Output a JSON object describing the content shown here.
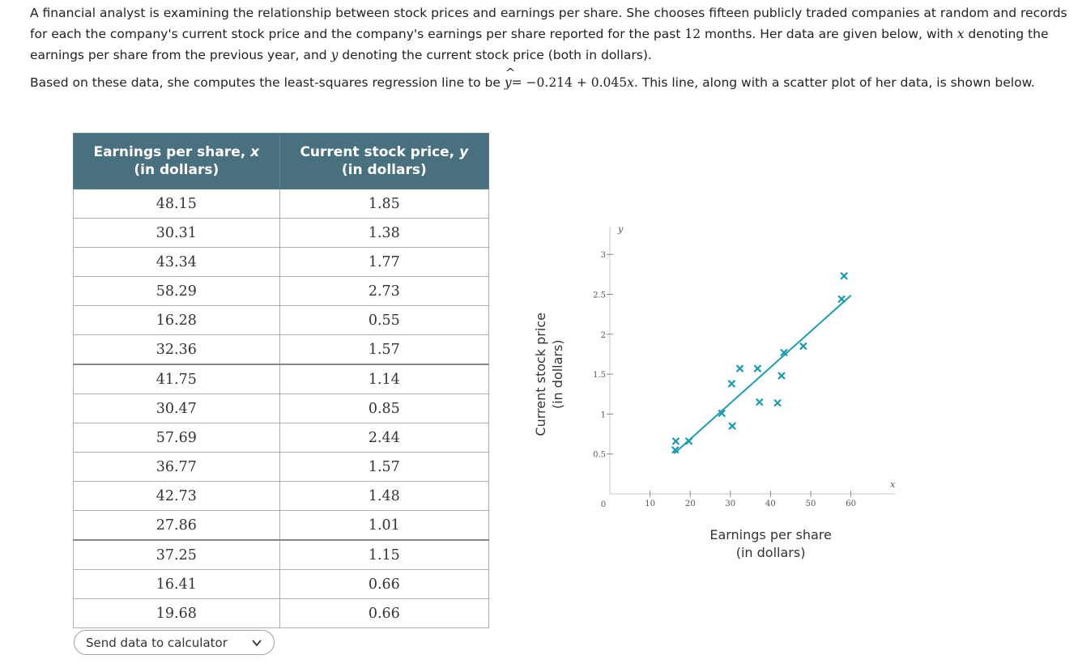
{
  "problem": {
    "p1": "A financial analyst is examining the relationship between stock prices and earnings per share. She chooses fifteen publicly traded companies at random and records for each the company's current stock price and the company's earnings per share reported for the past",
    "months_num": "12",
    "p1_b": "months. Her data are given below, with",
    "x_var": "x",
    "p1_c": "denoting the earnings per share from the previous year, and",
    "y_var": "y",
    "p1_d": "denoting the current stock price (both in dollars).",
    "p2_a": "Based on these data, she computes the least-squares regression line to be",
    "yhat": "y",
    "equation": "= −0.214 + 0.045",
    "eq_x": "x",
    "p2_b": ". This line, along with a scatter plot of her data, is shown below."
  },
  "table": {
    "col1_line1": "Earnings per share,",
    "col1_var": "x",
    "col1_line2": "(in dollars)",
    "col2_line1": "Current stock price,",
    "col2_var": "y",
    "col2_line2": "(in dollars)",
    "rows": [
      [
        "48.15",
        "1.85"
      ],
      [
        "30.31",
        "1.38"
      ],
      [
        "43.34",
        "1.77"
      ],
      [
        "58.29",
        "2.73"
      ],
      [
        "16.28",
        "0.55"
      ],
      [
        "32.36",
        "1.57"
      ],
      [
        "41.75",
        "1.14"
      ],
      [
        "30.47",
        "0.85"
      ],
      [
        "57.69",
        "2.44"
      ],
      [
        "36.77",
        "1.57"
      ],
      [
        "42.73",
        "1.48"
      ],
      [
        "27.86",
        "1.01"
      ],
      [
        "37.25",
        "1.15"
      ],
      [
        "16.41",
        "0.66"
      ],
      [
        "19.68",
        "0.66"
      ]
    ]
  },
  "send_button": {
    "label": "Send data to calculator",
    "icon": "chevron-down-icon"
  },
  "chart_data": {
    "type": "scatter",
    "x": [
      48.15,
      30.31,
      43.34,
      58.29,
      16.28,
      32.36,
      41.75,
      30.47,
      57.69,
      36.77,
      42.73,
      27.86,
      37.25,
      16.41,
      19.68
    ],
    "y": [
      1.85,
      1.38,
      1.77,
      2.73,
      0.55,
      1.57,
      1.14,
      0.85,
      2.44,
      1.57,
      1.48,
      1.01,
      1.15,
      0.66,
      0.66
    ],
    "regression": {
      "intercept": -0.214,
      "slope": 0.045,
      "x_range": [
        16,
        60
      ]
    },
    "xlim": [
      0,
      70
    ],
    "ylim": [
      0,
      3.3
    ],
    "x_ticks": [
      10,
      20,
      30,
      40,
      50,
      60
    ],
    "y_ticks": [
      0.5,
      1,
      1.5,
      2,
      2.5,
      3
    ],
    "x_tick_labels": [
      "10",
      "20",
      "30",
      "40",
      "50",
      "60"
    ],
    "y_tick_labels": [
      "0.5",
      "1",
      "1.5",
      "2",
      "2.5",
      "3"
    ],
    "origin_label": "0",
    "x_var": "x",
    "y_var": "y",
    "xlabel_line1": "Earnings per share",
    "xlabel_line2": "(in dollars)",
    "ylabel_line1": "Current stock price",
    "ylabel_line2": "(in dollars)",
    "marker": "x",
    "color": "#1a9bb0"
  }
}
